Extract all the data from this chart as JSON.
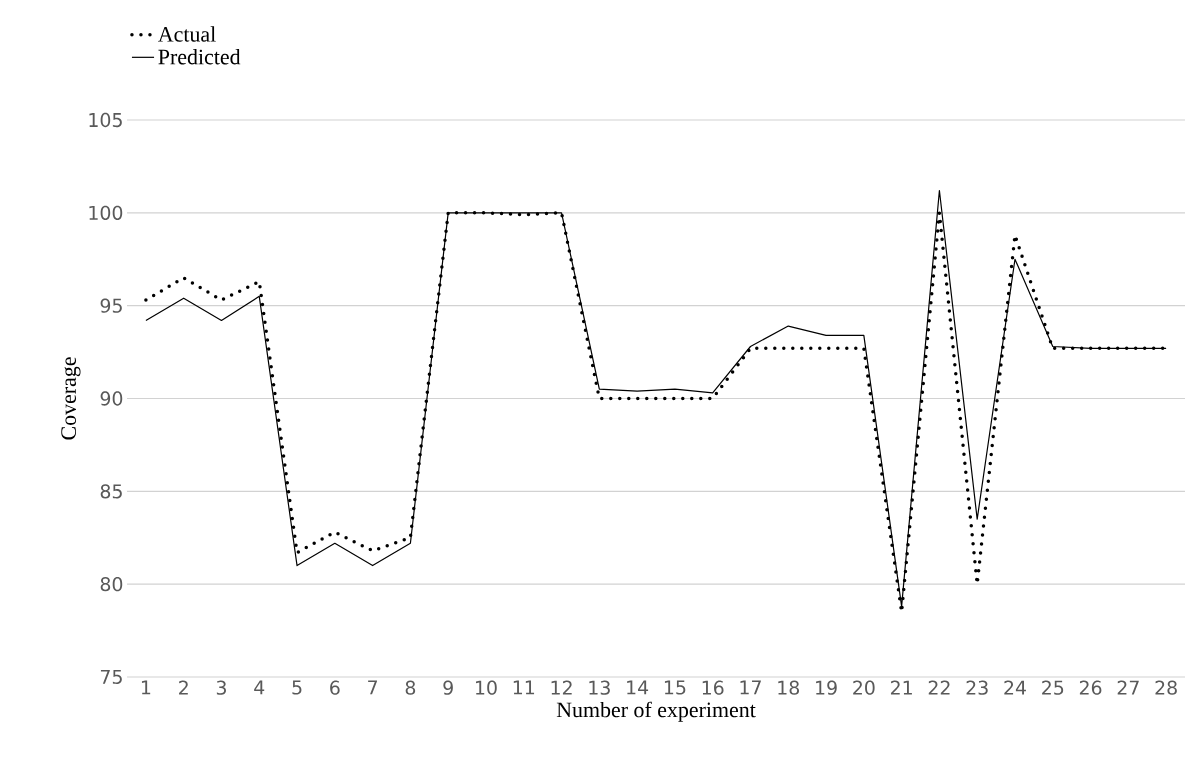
{
  "chart_data": {
    "type": "line",
    "xlabel": "Number of experiment",
    "ylabel": "Coverage",
    "categories": [
      "1",
      "2",
      "3",
      "4",
      "5",
      "6",
      "7",
      "8",
      "9",
      "10",
      "11",
      "12",
      "13",
      "14",
      "15",
      "16",
      "17",
      "18",
      "19",
      "20",
      "21",
      "22",
      "23",
      "24",
      "25",
      "26",
      "27",
      "28"
    ],
    "series": [
      {
        "name": "Actual",
        "color": "#000000",
        "line_style": "dotted",
        "values": [
          95.3,
          96.5,
          95.3,
          96.3,
          81.7,
          82.8,
          81.8,
          82.5,
          100,
          100,
          99.9,
          100,
          90,
          90,
          90,
          90,
          92.7,
          92.7,
          92.7,
          92.7,
          78.5,
          100,
          80,
          98.8,
          92.7,
          92.7,
          92.7,
          92.7
        ]
      },
      {
        "name": "Predicted",
        "color": "#000000",
        "line_style": "solid",
        "values": [
          94.2,
          95.4,
          94.2,
          95.5,
          81,
          82.2,
          81,
          82.2,
          100,
          100,
          100,
          100,
          90.5,
          90.4,
          90.5,
          90.3,
          92.8,
          93.9,
          93.4,
          93.4,
          78.8,
          101.2,
          83.5,
          97.5,
          92.8,
          92.7,
          92.7,
          92.7
        ]
      }
    ],
    "ylim": [
      75,
      105
    ],
    "yticks": [
      75,
      80,
      85,
      90,
      95,
      100,
      105
    ],
    "grid": "y",
    "legend": "top left"
  }
}
